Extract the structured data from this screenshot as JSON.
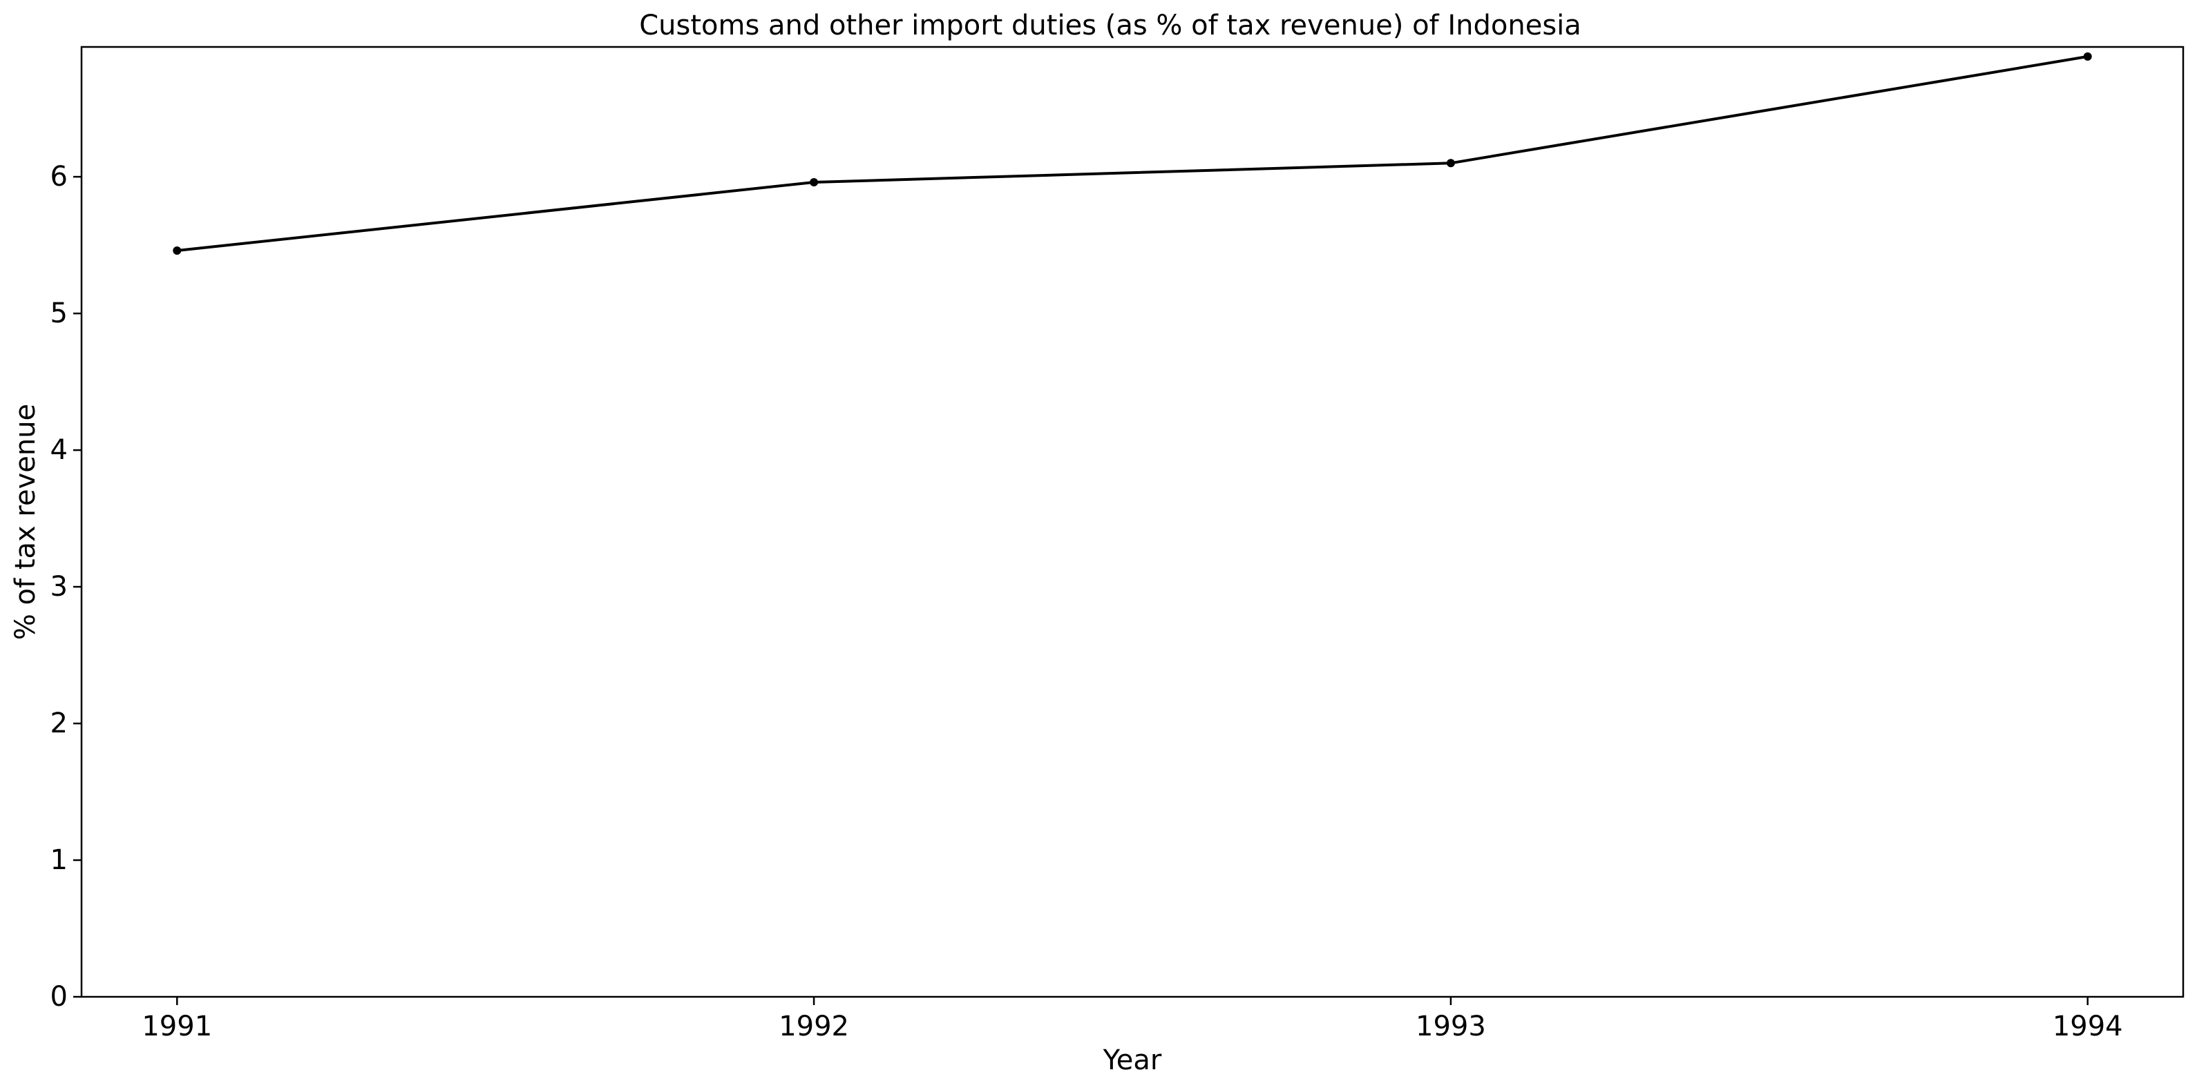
{
  "chart_data": {
    "type": "line",
    "title": "Customs and other import duties (as % of tax revenue) of Indonesia",
    "xlabel": "Year",
    "ylabel": "% of tax revenue",
    "x": [
      1991,
      1992,
      1993,
      1994
    ],
    "x_tick_labels": [
      "1991",
      "1992",
      "1993",
      "1994"
    ],
    "y_ticks": [
      0,
      1,
      2,
      3,
      4,
      5,
      6
    ],
    "y_tick_labels": [
      "0",
      "1",
      "2",
      "3",
      "4",
      "5",
      "6"
    ],
    "xlim": [
      1990.85,
      1994.15
    ],
    "ylim": [
      0,
      6.95
    ],
    "series": [
      {
        "values": [
          5.46,
          5.96,
          6.1,
          6.88
        ],
        "color": "#000000",
        "marker": "dot"
      }
    ],
    "grid": false,
    "legend": false
  }
}
